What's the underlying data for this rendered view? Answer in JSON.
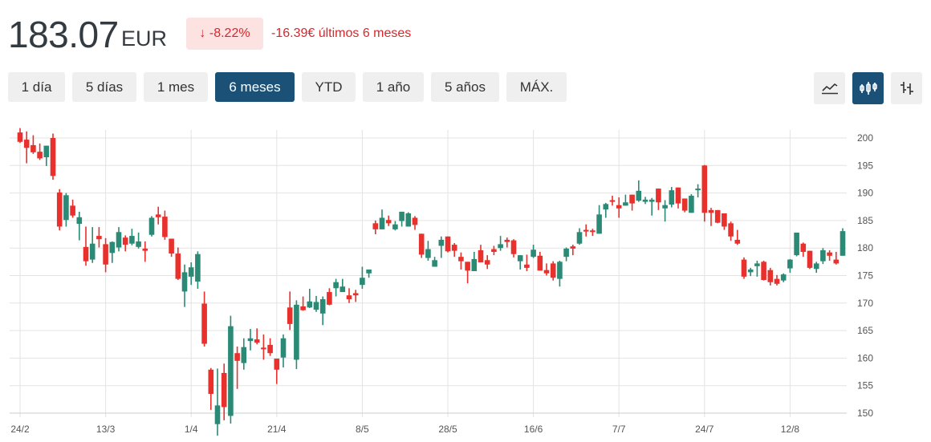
{
  "header": {
    "price": "183.07",
    "currency": "EUR",
    "change_pct": "-8.22%",
    "change_arrow": "↓",
    "change_text": "-16.39€ últimos 6 meses"
  },
  "ranges": [
    {
      "label": "1 día",
      "active": false
    },
    {
      "label": "5 días",
      "active": false
    },
    {
      "label": "1 mes",
      "active": false
    },
    {
      "label": "6 meses",
      "active": true
    },
    {
      "label": "YTD",
      "active": false
    },
    {
      "label": "1 año",
      "active": false
    },
    {
      "label": "5 años",
      "active": false
    },
    {
      "label": "MÁX.",
      "active": false
    }
  ],
  "chart_types": [
    {
      "icon": "line-chart-icon",
      "active": false
    },
    {
      "icon": "candlestick-icon",
      "active": true
    },
    {
      "icon": "ohlc-bars-icon",
      "active": false
    }
  ],
  "colors": {
    "up": "#2a8a75",
    "down": "#e8302d",
    "accent": "#1b5177",
    "negative": "#d9262b"
  },
  "chart_data": {
    "type": "candlestick",
    "ylim": [
      150,
      200
    ],
    "yticks": [
      150,
      155,
      160,
      165,
      170,
      175,
      180,
      185,
      190,
      195,
      200
    ],
    "grid": true,
    "y_axis_side": "right",
    "x_labels": [
      {
        "label": "24/2",
        "candle": 0
      },
      {
        "label": "13/3",
        "candle": 13
      },
      {
        "label": "1/4",
        "candle": 26
      },
      {
        "label": "21/4",
        "candle": 39
      },
      {
        "label": "8/5",
        "candle": 52
      },
      {
        "label": "28/5",
        "candle": 65
      },
      {
        "label": "16/6",
        "candle": 78
      },
      {
        "label": "7/7",
        "candle": 91
      },
      {
        "label": "24/7",
        "candle": 104
      },
      {
        "label": "12/8",
        "candle": 117
      }
    ],
    "ohlc": [
      [
        201.0,
        201.8,
        199.1,
        199.3
      ],
      [
        199.7,
        201.2,
        195.4,
        198.2
      ],
      [
        198.7,
        200.5,
        197.1,
        197.4
      ],
      [
        197.5,
        199.0,
        196.0,
        196.3
      ],
      [
        196.5,
        198.6,
        194.9,
        198.6
      ],
      [
        200.0,
        200.8,
        192.4,
        193.1
      ],
      [
        190.1,
        190.7,
        183.2,
        183.9
      ],
      [
        185.1,
        190.0,
        183.9,
        189.6
      ],
      [
        187.7,
        188.8,
        185.5,
        185.9
      ],
      [
        184.4,
        186.6,
        181.4,
        185.6
      ],
      [
        180.2,
        183.9,
        176.8,
        177.6
      ],
      [
        177.9,
        183.8,
        177.3,
        180.8
      ],
      [
        182.2,
        183.8,
        180.1,
        181.6
      ],
      [
        180.7,
        181.8,
        175.6,
        177.0
      ],
      [
        179.1,
        181.2,
        177.3,
        181.1
      ],
      [
        180.1,
        183.8,
        179.4,
        182.9
      ],
      [
        181.9,
        182.3,
        179.4,
        180.6
      ],
      [
        180.8,
        183.5,
        180.5,
        182.2
      ],
      [
        180.2,
        182.8,
        179.9,
        181.2
      ],
      [
        179.9,
        181.2,
        177.5,
        179.5
      ],
      [
        182.4,
        185.8,
        182.1,
        185.5
      ],
      [
        186.1,
        187.5,
        184.3,
        185.6
      ],
      [
        185.7,
        186.8,
        181.5,
        182.0
      ],
      [
        181.7,
        181.7,
        178.4,
        179.0
      ],
      [
        179.0,
        180.1,
        174.2,
        174.4
      ],
      [
        172.1,
        177.0,
        169.3,
        175.6
      ],
      [
        174.8,
        177.4,
        173.3,
        176.5
      ],
      [
        173.9,
        179.4,
        172.6,
        178.9
      ],
      [
        169.9,
        172.1,
        162.1,
        162.6
      ],
      [
        157.9,
        158.2,
        150.6,
        153.5
      ],
      [
        148.0,
        158.1,
        145.9,
        151.4
      ],
      [
        157.3,
        159.0,
        148.7,
        151.1
      ],
      [
        149.5,
        167.7,
        148.1,
        165.8
      ],
      [
        160.9,
        162.1,
        154.4,
        159.5
      ],
      [
        159.1,
        163.6,
        157.9,
        162.0
      ],
      [
        163.1,
        165.3,
        161.4,
        163.6
      ],
      [
        163.4,
        165.4,
        162.5,
        162.8
      ],
      [
        161.9,
        164.3,
        159.7,
        161.6
      ],
      [
        162.4,
        163.6,
        160.4,
        160.9
      ],
      [
        159.9,
        159.9,
        155.3,
        157.9
      ],
      [
        160.1,
        164.3,
        158.3,
        163.6
      ],
      [
        169.2,
        172.1,
        165.1,
        166.2
      ],
      [
        159.7,
        170.5,
        158.0,
        169.7
      ],
      [
        169.4,
        171.2,
        168.6,
        168.7
      ],
      [
        169.2,
        172.6,
        169.1,
        170.3
      ],
      [
        168.8,
        171.3,
        168.4,
        170.2
      ],
      [
        168.1,
        171.2,
        166.0,
        170.7
      ],
      [
        172.0,
        172.7,
        169.6,
        169.7
      ],
      [
        172.7,
        174.4,
        171.2,
        173.8
      ],
      [
        172.0,
        174.4,
        172.0,
        173.0
      ],
      [
        171.4,
        172.7,
        170.0,
        170.7
      ],
      [
        171.8,
        172.4,
        170.2,
        171.4
      ],
      [
        173.3,
        176.6,
        172.6,
        174.6
      ],
      [
        175.4,
        176.1,
        174.6,
        176.1
      ],
      [
        184.5,
        185.0,
        182.5,
        183.4
      ],
      [
        183.4,
        187.0,
        183.4,
        185.5
      ],
      [
        185.1,
        185.9,
        184.0,
        184.5
      ],
      [
        183.4,
        184.9,
        183.2,
        184.3
      ],
      [
        184.9,
        186.6,
        183.9,
        186.6
      ],
      [
        183.9,
        186.5,
        183.9,
        186.3
      ],
      [
        185.5,
        185.8,
        183.3,
        184.2
      ],
      [
        182.6,
        182.6,
        178.2,
        178.8
      ],
      [
        178.2,
        181.3,
        177.7,
        179.8
      ],
      [
        176.6,
        178.4,
        176.6,
        177.8
      ],
      [
        180.4,
        182.1,
        178.2,
        181.5
      ],
      [
        182.1,
        182.1,
        179.2,
        179.4
      ],
      [
        180.6,
        180.9,
        178.4,
        179.5
      ],
      [
        178.4,
        179.2,
        176.1,
        177.6
      ],
      [
        177.5,
        177.5,
        173.6,
        175.9
      ],
      [
        175.8,
        179.3,
        175.8,
        178.0
      ],
      [
        179.6,
        180.6,
        177.4,
        177.4
      ],
      [
        177.8,
        178.7,
        176.2,
        177.0
      ],
      [
        179.8,
        180.4,
        178.7,
        179.3
      ],
      [
        180.0,
        182.2,
        179.5,
        180.7
      ],
      [
        181.5,
        181.9,
        180.1,
        181.1
      ],
      [
        181.4,
        181.6,
        178.3,
        178.9
      ],
      [
        177.6,
        178.7,
        176.1,
        178.7
      ],
      [
        177.0,
        178.8,
        175.8,
        176.4
      ],
      [
        178.4,
        180.6,
        178.2,
        179.7
      ],
      [
        178.6,
        179.3,
        175.9,
        175.9
      ],
      [
        176.0,
        177.2,
        175.0,
        175.4
      ],
      [
        177.2,
        177.6,
        174.1,
        174.6
      ],
      [
        174.4,
        177.7,
        173.0,
        177.5
      ],
      [
        178.4,
        180.1,
        177.6,
        179.9
      ],
      [
        180.3,
        180.6,
        178.7,
        179.9
      ],
      [
        180.8,
        183.6,
        180.6,
        182.9
      ],
      [
        183.3,
        184.3,
        182.1,
        183.0
      ],
      [
        183.2,
        183.5,
        182.2,
        183.0
      ],
      [
        182.6,
        187.8,
        182.6,
        186.1
      ],
      [
        187.0,
        188.2,
        185.5,
        188.0
      ],
      [
        188.7,
        189.5,
        187.7,
        188.4
      ],
      [
        187.8,
        189.2,
        185.5,
        187.2
      ],
      [
        187.7,
        189.7,
        187.7,
        188.3
      ],
      [
        189.7,
        189.7,
        186.8,
        188.1
      ],
      [
        188.6,
        192.3,
        188.4,
        190.4
      ],
      [
        188.4,
        189.3,
        188.0,
        188.8
      ],
      [
        188.4,
        189.1,
        185.9,
        188.8
      ],
      [
        190.8,
        190.8,
        186.9,
        188.3
      ],
      [
        187.2,
        188.7,
        184.8,
        187.8
      ],
      [
        187.9,
        191.1,
        187.4,
        190.5
      ],
      [
        191.0,
        191.0,
        187.2,
        188.1
      ],
      [
        189.0,
        189.0,
        186.5,
        186.8
      ],
      [
        186.4,
        189.8,
        186.4,
        189.5
      ],
      [
        190.5,
        191.6,
        189.2,
        190.8
      ],
      [
        195.0,
        195.1,
        184.8,
        186.4
      ],
      [
        186.9,
        187.3,
        184.0,
        186.4
      ],
      [
        186.9,
        186.9,
        184.5,
        184.6
      ],
      [
        186.3,
        186.3,
        183.3,
        183.9
      ],
      [
        184.5,
        184.8,
        181.3,
        182.1
      ],
      [
        181.5,
        183.3,
        180.6,
        180.8
      ],
      [
        177.9,
        178.3,
        174.4,
        174.8
      ],
      [
        175.6,
        176.4,
        174.9,
        176.1
      ],
      [
        176.7,
        177.7,
        174.8,
        177.2
      ],
      [
        177.5,
        177.7,
        174.1,
        174.2
      ],
      [
        176.0,
        176.4,
        173.2,
        173.8
      ],
      [
        174.4,
        175.1,
        173.2,
        173.5
      ],
      [
        174.1,
        175.4,
        173.8,
        175.2
      ],
      [
        176.3,
        178.0,
        175.5,
        177.9
      ],
      [
        178.7,
        182.8,
        178.5,
        182.8
      ],
      [
        180.8,
        181.0,
        178.4,
        179.3
      ],
      [
        179.5,
        179.5,
        176.2,
        176.4
      ],
      [
        176.2,
        177.5,
        175.5,
        177.2
      ],
      [
        177.6,
        180.0,
        177.1,
        179.6
      ],
      [
        179.2,
        179.6,
        177.7,
        178.6
      ],
      [
        177.9,
        179.3,
        177.0,
        177.2
      ],
      [
        178.6,
        183.6,
        178.6,
        183.07
      ]
    ]
  }
}
